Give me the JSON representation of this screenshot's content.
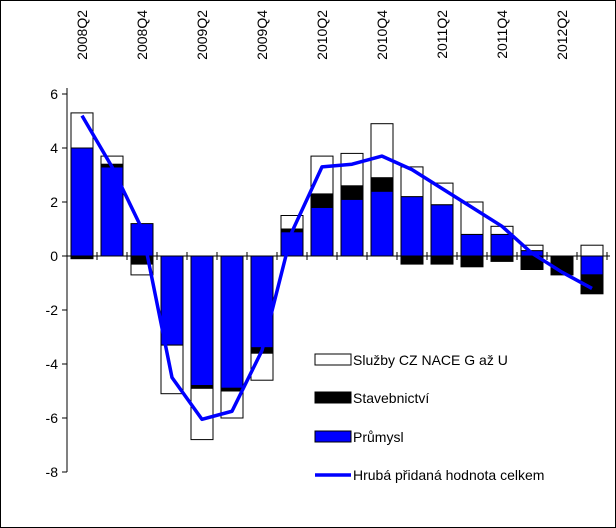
{
  "chart_data": {
    "type": "stacked-bar-line",
    "categories": [
      "2008Q2",
      null,
      "2008Q4",
      null,
      "2009Q2",
      null,
      "2009Q4",
      null,
      "2010Q2",
      null,
      "2010Q4",
      null,
      "2011Q2",
      null,
      "2011Q4",
      null,
      "2012Q2",
      null
    ],
    "series": [
      {
        "name": "Průmysl",
        "color": "#0000ff",
        "kind": "bar",
        "values": [
          4.0,
          3.3,
          1.2,
          -3.3,
          -4.8,
          -4.9,
          -3.4,
          0.9,
          1.8,
          2.1,
          2.4,
          2.2,
          1.9,
          0.8,
          0.8,
          0.2,
          0.0,
          -0.7
        ]
      },
      {
        "name": "Stavebnictví",
        "color": "#000000",
        "kind": "bar",
        "values": [
          -0.1,
          0.1,
          -0.3,
          0.0,
          -0.1,
          -0.1,
          -0.2,
          0.1,
          0.5,
          0.5,
          0.5,
          -0.3,
          -0.3,
          -0.4,
          -0.2,
          -0.5,
          -0.7,
          -0.7
        ]
      },
      {
        "name": "Služby CZ NACE G až U",
        "color": "#ffffff",
        "kind": "bar",
        "values": [
          1.3,
          0.3,
          -0.4,
          -1.8,
          -1.9,
          -1.0,
          -1.0,
          0.5,
          1.4,
          1.2,
          2.0,
          1.1,
          0.8,
          1.2,
          0.3,
          0.2,
          0.0,
          0.4
        ]
      },
      {
        "name": "Hrubá přidaná hodnota celkem",
        "color": "#0000ff",
        "kind": "line",
        "values": [
          5.2,
          3.3,
          1.0,
          -4.5,
          -6.05,
          -5.75,
          -3.5,
          0.9,
          3.3,
          3.4,
          3.7,
          3.2,
          2.5,
          1.8,
          1.1,
          0.1,
          -0.6,
          -1.2
        ]
      }
    ],
    "ylim": [
      -8,
      6
    ],
    "yticks": [
      -8,
      -6,
      -4,
      -2,
      0,
      2,
      4,
      6
    ],
    "grid": false
  }
}
